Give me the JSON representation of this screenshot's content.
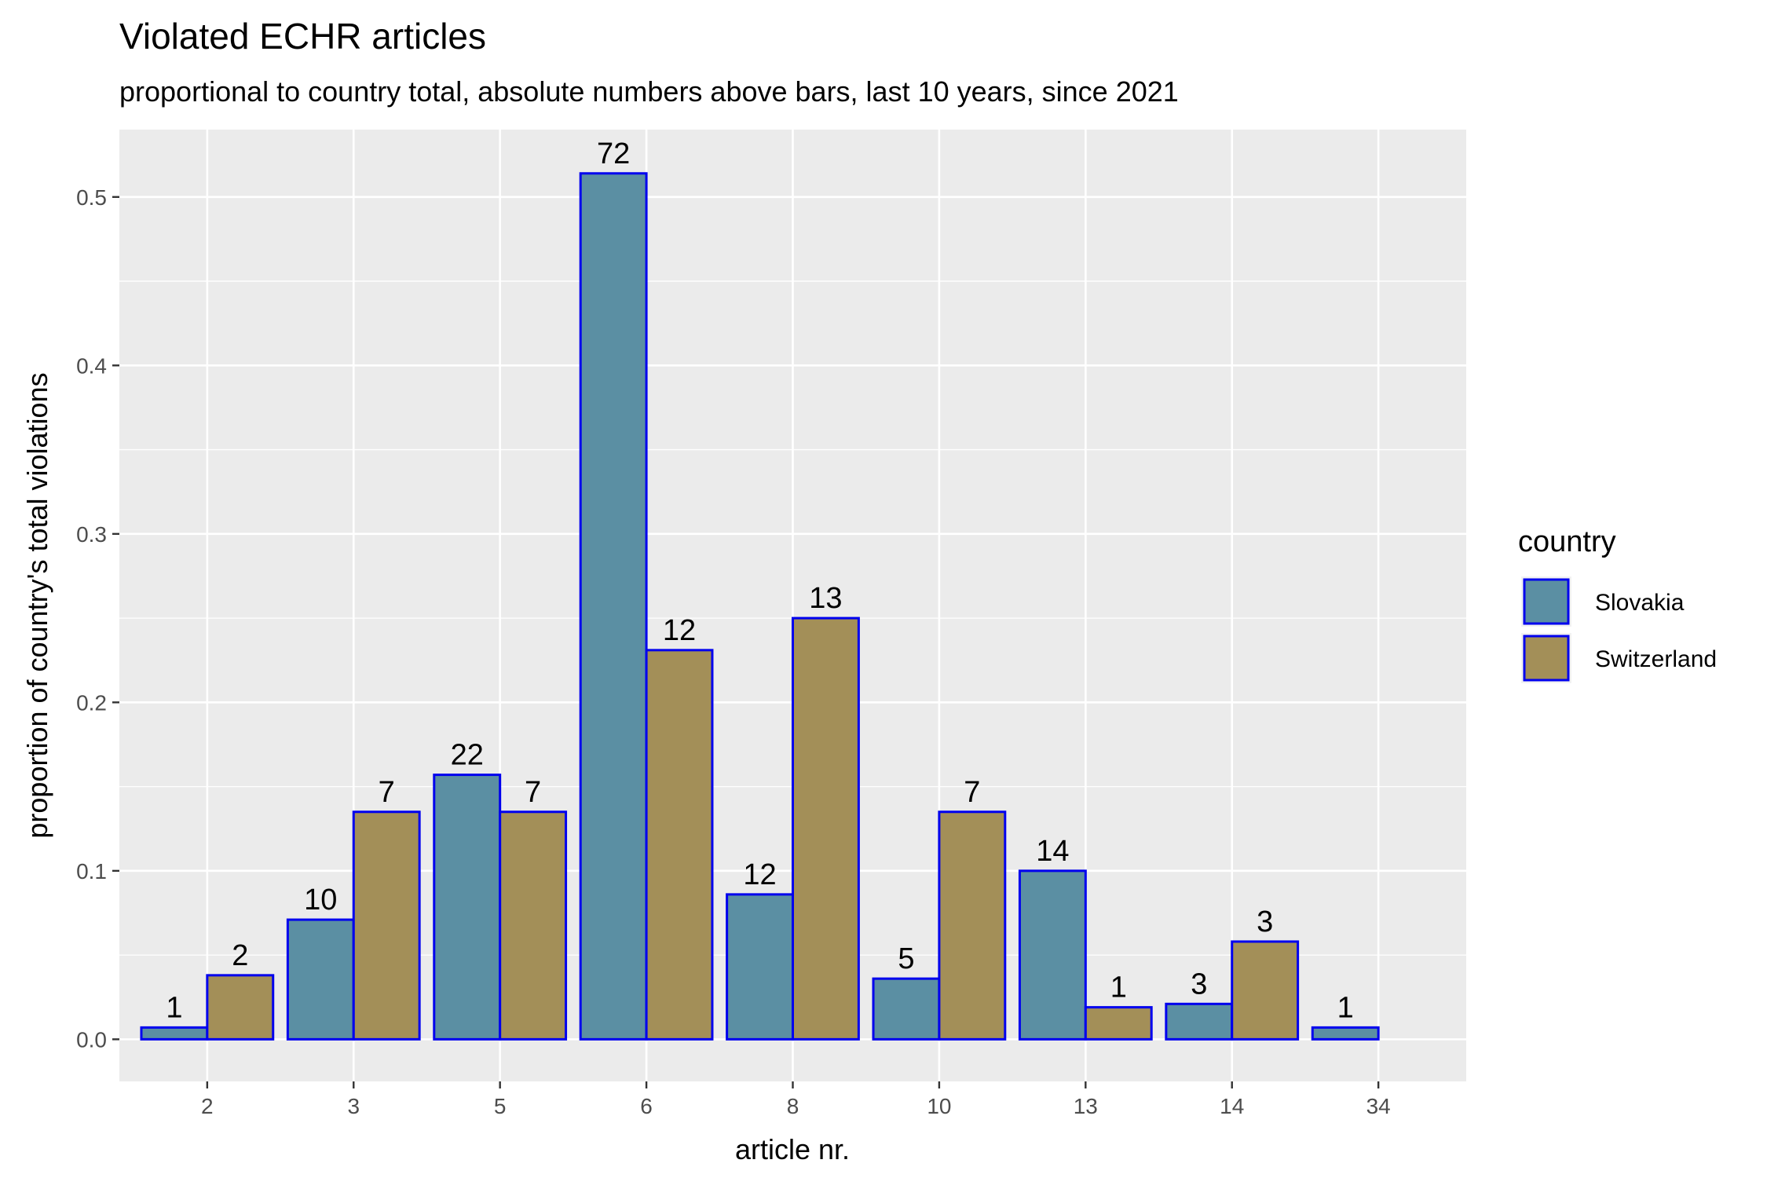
{
  "chart_data": {
    "type": "bar",
    "title": "Violated ECHR articles",
    "subtitle": "proportional to country total, absolute numbers above bars, last 10 years, since 2021",
    "xlabel": "article nr.",
    "ylabel": "proportion of country's total violations",
    "ylim": [
      -0.025,
      0.54
    ],
    "yticks": [
      0.0,
      0.1,
      0.2,
      0.3,
      0.4,
      0.5
    ],
    "ytick_labels": [
      "0.0",
      "0.1",
      "0.2",
      "0.3",
      "0.4",
      "0.5"
    ],
    "grid": true,
    "legend_position": "right",
    "legend_title": "country",
    "categories": [
      "2",
      "3",
      "5",
      "6",
      "8",
      "10",
      "13",
      "14",
      "34"
    ],
    "series": [
      {
        "name": "Slovakia",
        "color": "#5b8fa3",
        "values": [
          0.007,
          0.071,
          0.157,
          0.514,
          0.086,
          0.036,
          0.1,
          0.021,
          0.007
        ],
        "labels": [
          "1",
          "10",
          "22",
          "72",
          "12",
          "5",
          "14",
          "3",
          "1"
        ]
      },
      {
        "name": "Switzerland",
        "color": "#a38f58",
        "values": [
          0.038,
          0.135,
          0.135,
          0.231,
          0.25,
          0.135,
          0.019,
          0.058,
          null
        ],
        "labels": [
          "2",
          "7",
          "7",
          "12",
          "13",
          "7",
          "1",
          "3",
          null
        ]
      }
    ],
    "bar_outline_color": "#0000ee",
    "panel_background": "#ebebeb",
    "grid_color": "#ffffff"
  }
}
